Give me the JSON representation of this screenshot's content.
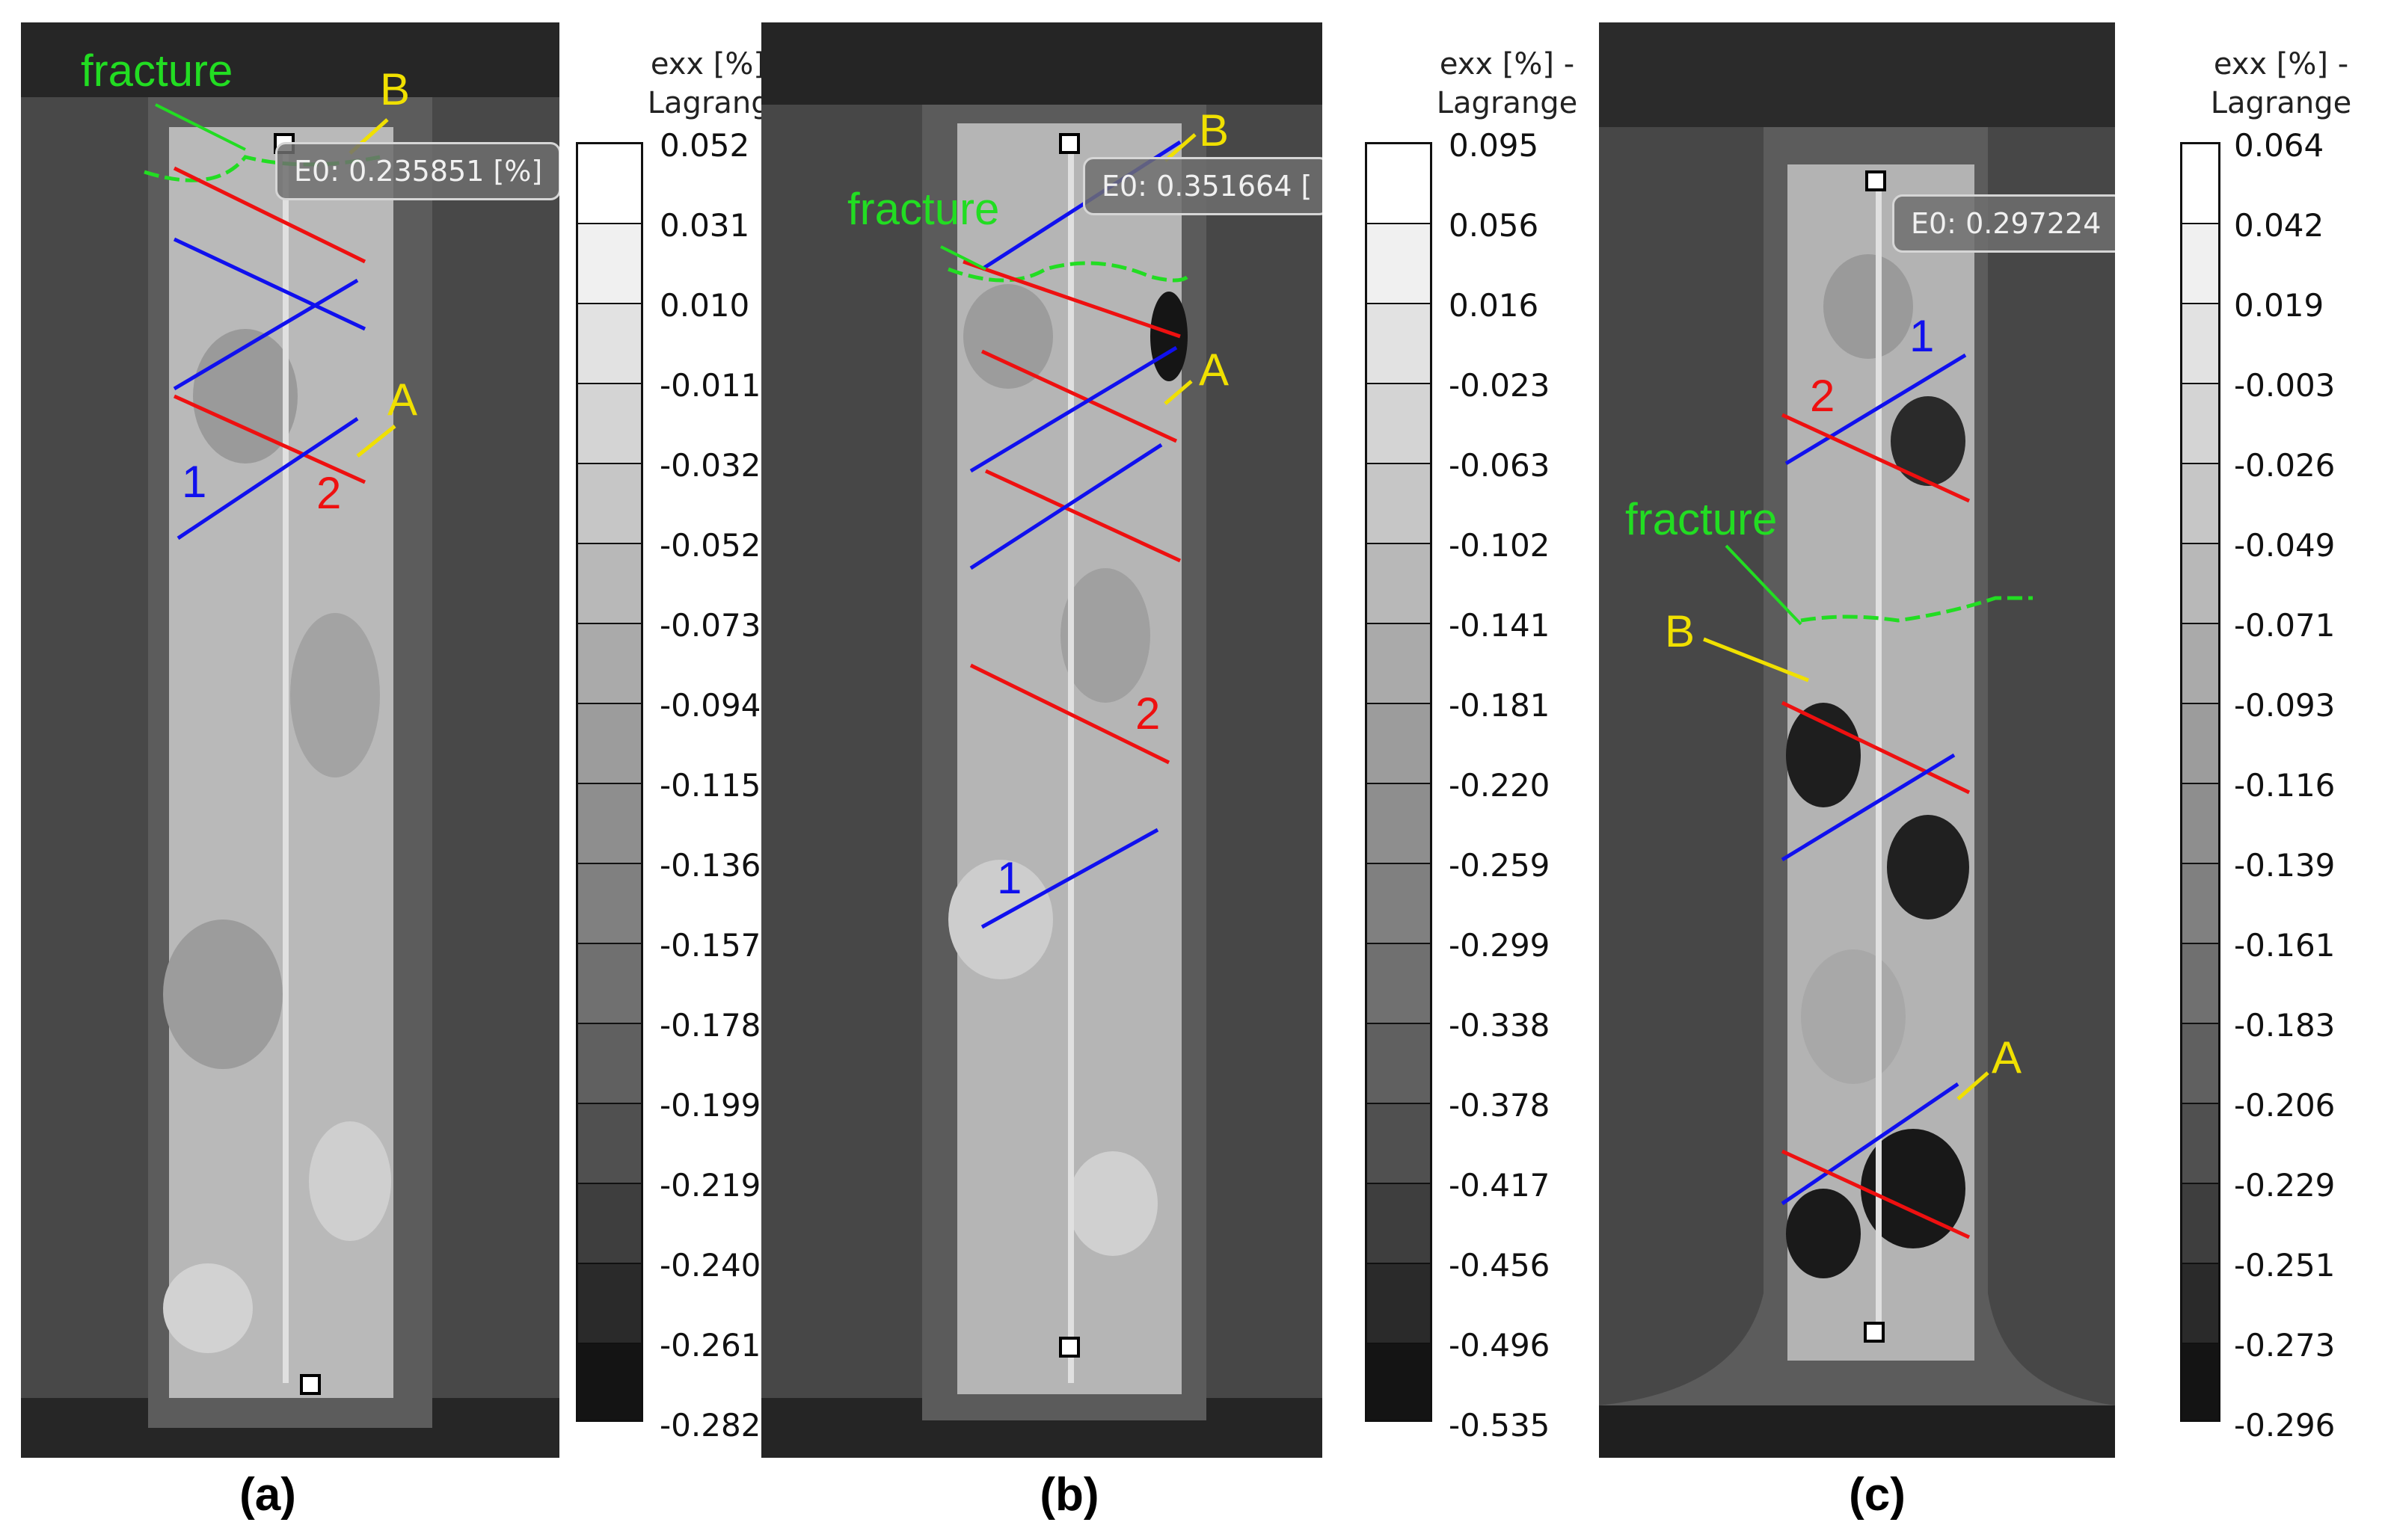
{
  "panels": [
    {
      "caption": "(a)",
      "callout": "E0: 0.235851 [%]",
      "annotations": {
        "fracture": "fracture",
        "A": "A",
        "B": "B",
        "one": "1",
        "two": "2"
      },
      "colorbar": {
        "title_line1": "exx [%] -",
        "title_line2": "Lagrange",
        "ticks": [
          "0.052",
          "0.031",
          "0.010",
          "-0.011",
          "-0.032",
          "-0.052",
          "-0.073",
          "-0.094",
          "-0.115",
          "-0.136",
          "-0.157",
          "-0.178",
          "-0.199",
          "-0.219",
          "-0.240",
          "-0.261",
          "-0.282"
        ]
      }
    },
    {
      "caption": "(b)",
      "callout": "E0: 0.351664 [",
      "annotations": {
        "fracture": "fracture",
        "A": "A",
        "B": "B",
        "one": "1",
        "two": "2"
      },
      "colorbar": {
        "title_line1": "exx [%] -",
        "title_line2": "Lagrange",
        "ticks": [
          "0.095",
          "0.056",
          "0.016",
          "-0.023",
          "-0.063",
          "-0.102",
          "-0.141",
          "-0.181",
          "-0.220",
          "-0.259",
          "-0.299",
          "-0.338",
          "-0.378",
          "-0.417",
          "-0.456",
          "-0.496",
          "-0.535"
        ]
      }
    },
    {
      "caption": "(c)",
      "callout": "E0: 0.297224",
      "annotations": {
        "fracture": "fracture",
        "A": "A",
        "B": "B",
        "one": "1",
        "two": "2"
      },
      "colorbar": {
        "title_line1": "exx [%] -",
        "title_line2": "Lagrange",
        "ticks": [
          "0.064",
          "0.042",
          "0.019",
          "-0.003",
          "-0.026",
          "-0.049",
          "-0.071",
          "-0.093",
          "-0.116",
          "-0.139",
          "-0.161",
          "-0.183",
          "-0.206",
          "-0.229",
          "-0.251",
          "-0.273",
          "-0.296"
        ]
      }
    }
  ],
  "colors": {
    "fracture": "#22dd22",
    "label_yellow": "#f0e000",
    "line_blue": "#1010ee",
    "line_red": "#ee1010"
  }
}
